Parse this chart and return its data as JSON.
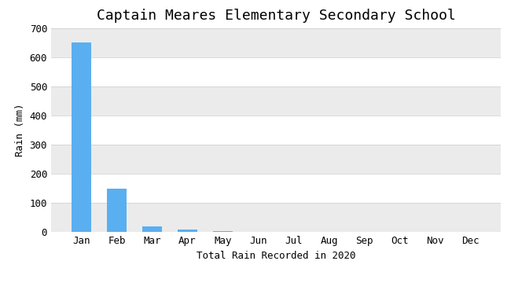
{
  "title": "Captain Meares Elementary Secondary School",
  "xlabel": "Total Rain Recorded in 2020",
  "ylabel": "Rain (mm)",
  "months": [
    "Jan",
    "Feb",
    "Mar",
    "Apr",
    "May",
    "Jun",
    "Jul",
    "Aug",
    "Sep",
    "Oct",
    "Nov",
    "Dec"
  ],
  "values": [
    651,
    150,
    20,
    8,
    4,
    0,
    0,
    0,
    0,
    0,
    0,
    0
  ],
  "bar_color": "#5aaff0",
  "ylim": [
    0,
    700
  ],
  "yticks": [
    0,
    100,
    200,
    300,
    400,
    500,
    600,
    700
  ],
  "bg_color": "#ffffff",
  "band_color": "#ebebeb",
  "title_fontsize": 13,
  "label_fontsize": 9,
  "tick_fontsize": 9
}
